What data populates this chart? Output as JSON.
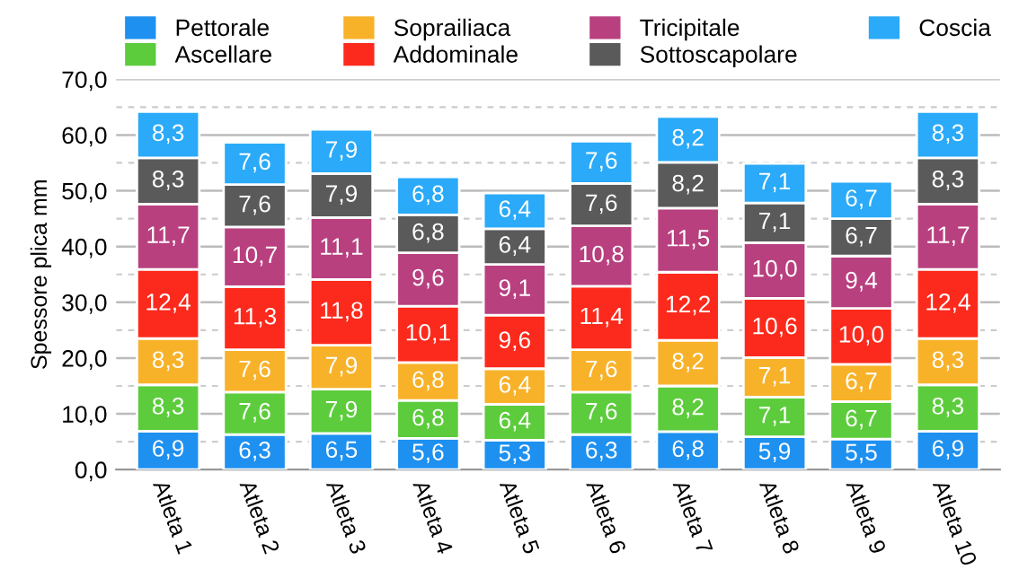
{
  "chart_data": {
    "type": "bar",
    "stacked": true,
    "ylabel": "Spessore plica mm",
    "categories": [
      "Atleta 1",
      "Atleta 2",
      "Atleta 3",
      "Atleta 4",
      "Atleta 5",
      "Atleta 6",
      "Atleta 7",
      "Atleta 8",
      "Atleta 9",
      "Atleta 10"
    ],
    "series": [
      {
        "name": "Pettorale",
        "color": "#1e90f0",
        "values": [
          6.9,
          6.3,
          6.5,
          5.6,
          5.3,
          6.3,
          6.8,
          5.9,
          5.5,
          6.9
        ],
        "value_labels": [
          "6,9",
          "6,3",
          "6,5",
          "5,6",
          "5,3",
          "6,3",
          "6,8",
          "5,9",
          "5,5",
          "6,9"
        ]
      },
      {
        "name": "Ascellare",
        "color": "#5ccc3c",
        "values": [
          8.3,
          7.6,
          7.9,
          6.8,
          6.4,
          7.6,
          8.2,
          7.1,
          6.7,
          8.3
        ],
        "value_labels": [
          "8,3",
          "7,6",
          "7,9",
          "6,8",
          "6,4",
          "7,6",
          "8,2",
          "7,1",
          "6,7",
          "8,3"
        ]
      },
      {
        "name": "Soprailiaca",
        "color": "#f8b22a",
        "values": [
          8.3,
          7.6,
          7.9,
          6.8,
          6.4,
          7.6,
          8.2,
          7.1,
          6.7,
          8.3
        ],
        "value_labels": [
          "8,3",
          "7,6",
          "7,9",
          "6,8",
          "6,4",
          "7,6",
          "8,2",
          "7,1",
          "6,7",
          "8,3"
        ]
      },
      {
        "name": "Addominale",
        "color": "#fc2a1c",
        "values": [
          12.4,
          11.3,
          11.8,
          10.1,
          9.6,
          11.4,
          12.2,
          10.6,
          10.0,
          12.4
        ],
        "value_labels": [
          "12,4",
          "11,3",
          "11,8",
          "10,1",
          "9,6",
          "11,4",
          "12,2",
          "10,6",
          "10,0",
          "12,4"
        ]
      },
      {
        "name": "Tricipitale",
        "color": "#b8407f",
        "values": [
          11.7,
          10.7,
          11.1,
          9.6,
          9.1,
          10.8,
          11.5,
          10.0,
          9.4,
          11.7
        ],
        "value_labels": [
          "11,7",
          "10,7",
          "11,1",
          "9,6",
          "9,1",
          "10,8",
          "11,5",
          "10,0",
          "9,4",
          "11,7"
        ]
      },
      {
        "name": "Sottoscapolare",
        "color": "#5a5a5a",
        "values": [
          8.3,
          7.6,
          7.9,
          6.8,
          6.4,
          7.6,
          8.2,
          7.1,
          6.7,
          8.3
        ],
        "value_labels": [
          "8,3",
          "7,6",
          "7,9",
          "6,8",
          "6,4",
          "7,6",
          "8,2",
          "7,1",
          "6,7",
          "8,3"
        ]
      },
      {
        "name": "Coscia",
        "color": "#2aaaf8",
        "values": [
          8.3,
          7.6,
          7.9,
          6.8,
          6.4,
          7.6,
          8.2,
          7.1,
          6.7,
          8.3
        ],
        "value_labels": [
          "8,3",
          "7,6",
          "7,9",
          "6,8",
          "6,4",
          "7,6",
          "8,2",
          "7,1",
          "6,7",
          "8,3"
        ]
      }
    ],
    "ylim": [
      0,
      70
    ],
    "yticks": [
      {
        "value": 0,
        "label": "0,0"
      },
      {
        "value": 5,
        "label": null
      },
      {
        "value": 10,
        "label": "10,0"
      },
      {
        "value": 15,
        "label": null
      },
      {
        "value": 20,
        "label": "20,0"
      },
      {
        "value": 25,
        "label": null
      },
      {
        "value": 30,
        "label": "30,0"
      },
      {
        "value": 35,
        "label": null
      },
      {
        "value": 40,
        "label": "40,0"
      },
      {
        "value": 45,
        "label": null
      },
      {
        "value": 50,
        "label": "50,0"
      },
      {
        "value": 55,
        "label": null
      },
      {
        "value": 60,
        "label": "60,0"
      },
      {
        "value": 65,
        "label": null
      },
      {
        "value": 70,
        "label": "70,0"
      }
    ],
    "grid": "y",
    "legend": "top"
  }
}
